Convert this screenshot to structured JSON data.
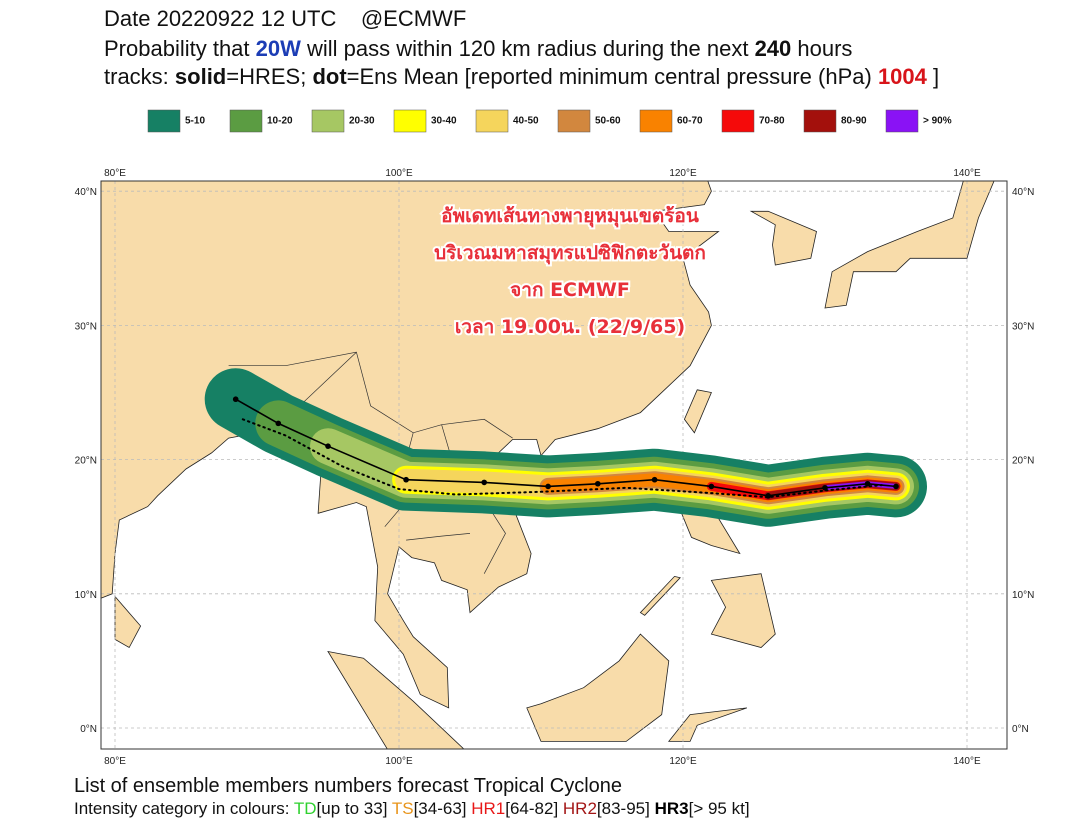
{
  "header": {
    "date": "Date 20220922 12 UTC",
    "source": "@ECMWF",
    "line2": [
      {
        "text": "Probability that ",
        "style": "plain"
      },
      {
        "text": "20W",
        "style": "blue"
      },
      {
        "text": " will pass within 120 km radius during the next ",
        "style": "plain"
      },
      {
        "text": "240",
        "style": "bold"
      },
      {
        "text": " hours",
        "style": "plain"
      }
    ],
    "line3": [
      {
        "text": "tracks: ",
        "style": "plain"
      },
      {
        "text": "solid",
        "style": "bold"
      },
      {
        "text": "=HRES; ",
        "style": "plain"
      },
      {
        "text": "dot",
        "style": "bold"
      },
      {
        "text": "=Ens Mean [reported minimum central pressure (hPa) ",
        "style": "plain"
      },
      {
        "text": "1004",
        "style": "red"
      },
      {
        "text": " ]",
        "style": "plain"
      }
    ]
  },
  "legend": [
    {
      "label": "5-10",
      "color": "#168064"
    },
    {
      "label": "10-20",
      "color": "#5b9c42"
    },
    {
      "label": "20-30",
      "color": "#a6c763"
    },
    {
      "label": "30-40",
      "color": "#ffff00"
    },
    {
      "label": "40-50",
      "color": "#f5d55c"
    },
    {
      "label": "50-60",
      "color": "#d2873e"
    },
    {
      "label": "60-70",
      "color": "#f98200"
    },
    {
      "label": "70-80",
      "color": "#f50a0a"
    },
    {
      "label": "80-90",
      "color": "#a3100c"
    },
    {
      "label": "> 90%",
      "color": "#8a12f5"
    }
  ],
  "map": {
    "lon_ticks": [
      {
        "value": 80,
        "label": "80°E"
      },
      {
        "value": 100,
        "label": "100°E"
      },
      {
        "value": 120,
        "label": "120°E"
      },
      {
        "value": 140,
        "label": "140°E"
      }
    ],
    "lat_ticks": [
      {
        "value": 40,
        "label": "40°N"
      },
      {
        "value": 30,
        "label": "30°N"
      },
      {
        "value": 20,
        "label": "20°N"
      },
      {
        "value": 10,
        "label": "10°N"
      },
      {
        "value": 0,
        "label": "0°N"
      }
    ],
    "overlay_text": [
      "อัพเดทเส้นทางพายุหมุนเขตร้อน",
      "บริเวณมหาสมุทรแปซิฟิกตะวันตก",
      "จาก ECMWF",
      "เวลา 19.00น. (22/9/65)"
    ]
  },
  "footer": {
    "line1": "List of ensemble members numbers forecast Tropical Cyclone",
    "line2": [
      {
        "text": "Intensity category in colours: ",
        "style": "plain"
      },
      {
        "text": "TD",
        "style": "td"
      },
      {
        "text": "[up to 33] ",
        "style": "plain"
      },
      {
        "text": "TS",
        "style": "ts"
      },
      {
        "text": "[34-63] ",
        "style": "plain"
      },
      {
        "text": "HR1",
        "style": "hr1"
      },
      {
        "text": "[64-82] ",
        "style": "plain"
      },
      {
        "text": "HR2",
        "style": "hr2"
      },
      {
        "text": "[83-95] ",
        "style": "plain"
      },
      {
        "text": "HR3",
        "style": "hr3"
      },
      {
        "text": "[> 95 kt]",
        "style": "plain"
      }
    ]
  }
}
